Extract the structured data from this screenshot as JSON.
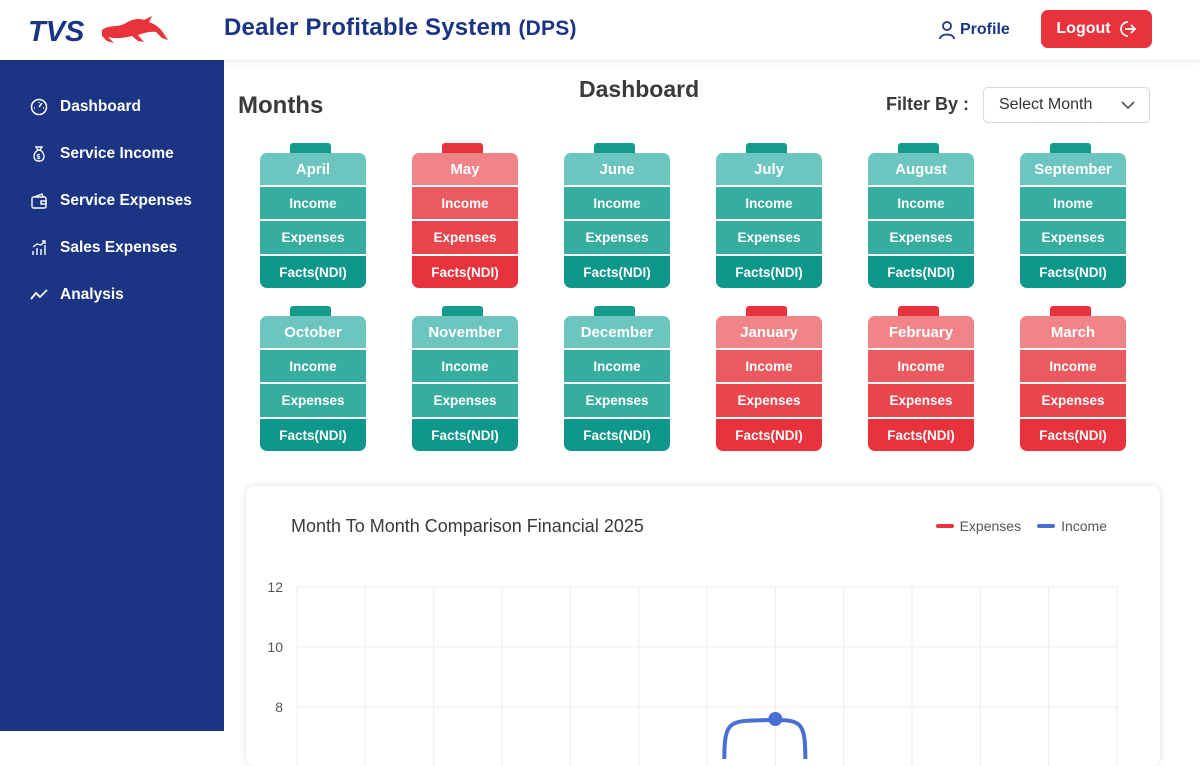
{
  "header": {
    "logo_text": "TVS",
    "app_title": "Dealer Profitable System",
    "app_abbr": "(DPS)",
    "profile_label": "Profile",
    "logout_label": "Logout"
  },
  "sidebar": {
    "items": [
      {
        "label": "Dashboard",
        "icon": "gauge-icon"
      },
      {
        "label": "Service Income",
        "icon": "money-bag-icon"
      },
      {
        "label": "Service Expenses",
        "icon": "wallet-icon"
      },
      {
        "label": "Sales Expenses",
        "icon": "bar-chart-icon"
      },
      {
        "label": "Analysis",
        "icon": "trend-line-icon"
      }
    ]
  },
  "main": {
    "months_title": "Months",
    "dashboard_title": "Dashboard",
    "filter_label": "Filter By :",
    "filter_select_value": "Select Month"
  },
  "months": [
    {
      "name": "April",
      "rows": [
        "Income",
        "Expenses",
        "Facts(NDI)"
      ],
      "status": "teal"
    },
    {
      "name": "May",
      "rows": [
        "Income",
        "Expenses",
        "Facts(NDI)"
      ],
      "status": "red"
    },
    {
      "name": "June",
      "rows": [
        "Income",
        "Expenses",
        "Facts(NDI)"
      ],
      "status": "teal"
    },
    {
      "name": "July",
      "rows": [
        "Income",
        "Expenses",
        "Facts(NDI)"
      ],
      "status": "teal"
    },
    {
      "name": "August",
      "rows": [
        "Income",
        "Expenses",
        "Facts(NDI)"
      ],
      "status": "teal"
    },
    {
      "name": "September",
      "rows": [
        "Inome",
        "Expenses",
        "Facts(NDI)"
      ],
      "status": "teal"
    },
    {
      "name": "October",
      "rows": [
        "Income",
        "Expenses",
        "Facts(NDI)"
      ],
      "status": "teal"
    },
    {
      "name": "November",
      "rows": [
        "Income",
        "Expenses",
        "Facts(NDI)"
      ],
      "status": "teal"
    },
    {
      "name": "December",
      "rows": [
        "Income",
        "Expenses",
        "Facts(NDI)"
      ],
      "status": "teal"
    },
    {
      "name": "January",
      "rows": [
        "Income",
        "Expenses",
        "Facts(NDI)"
      ],
      "status": "red"
    },
    {
      "name": "February",
      "rows": [
        "Income",
        "Expenses",
        "Facts(NDI)"
      ],
      "status": "red"
    },
    {
      "name": "March",
      "rows": [
        "Income",
        "Expenses",
        "Facts(NDI)"
      ],
      "status": "red"
    }
  ],
  "colors": {
    "brand_blue": "#1b3584",
    "teal": "#37ad9f",
    "red": "#e8323c",
    "income_line": "#4a6fd4",
    "expenses_line": "#e8323c"
  },
  "chart_data": {
    "type": "line",
    "title": "Month To Month Comparison Financial 2025",
    "legend": [
      "Expenses",
      "Income"
    ],
    "legend_placement": "top-right",
    "y_ticks": [
      12,
      10,
      8
    ],
    "ylim": [
      0,
      12
    ],
    "grid": true,
    "x_count": 13,
    "series": [
      {
        "name": "Income",
        "color": "#4a6fd4",
        "points": [
          [
            7,
            7.6
          ]
        ]
      }
    ]
  }
}
